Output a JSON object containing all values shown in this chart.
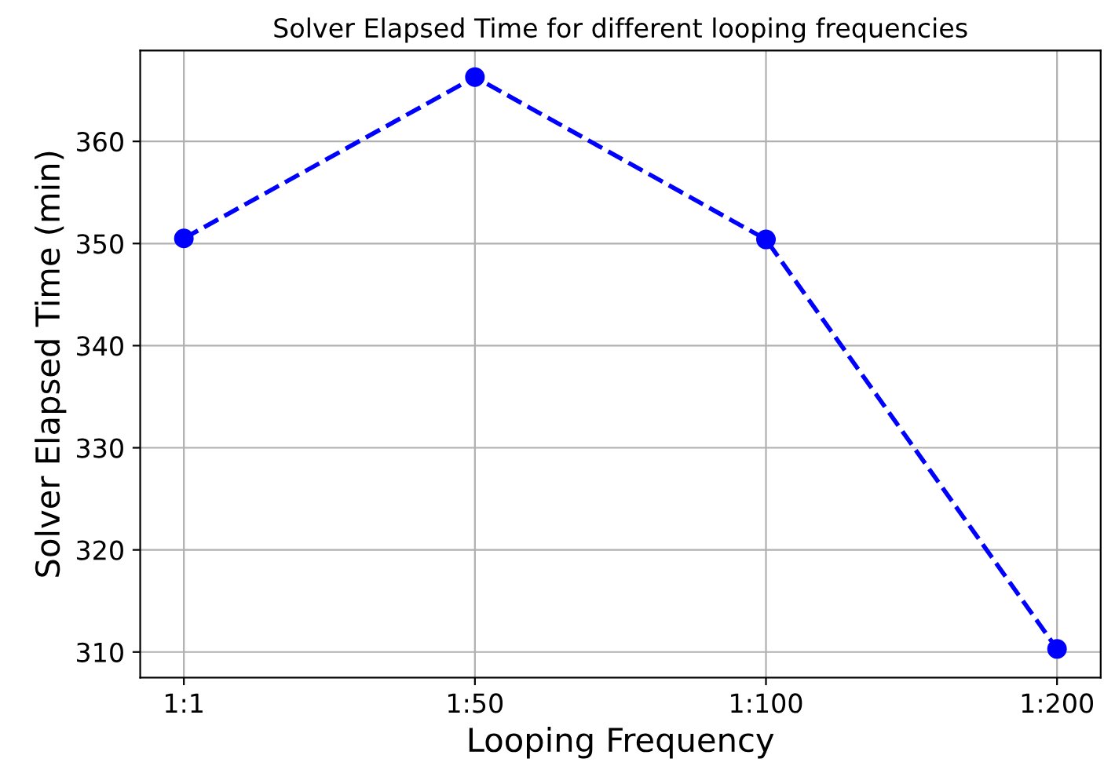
{
  "chart_data": {
    "type": "line",
    "title": "Solver Elapsed Time for different looping frequencies",
    "xlabel": "Looping Frequency",
    "ylabel": "Solver Elapsed Time (min)",
    "categories": [
      "1:1",
      "1:50",
      "1:100",
      "1:200"
    ],
    "series": [
      {
        "color": "#0000ff",
        "values": [
          350.5,
          366.3,
          350.4,
          310.3
        ]
      }
    ],
    "ylim": [
      307.5,
      368.9
    ],
    "yticks": [
      310,
      320,
      330,
      340,
      350,
      360
    ],
    "grid": true,
    "marker": "circle",
    "line_style": "dashed"
  }
}
